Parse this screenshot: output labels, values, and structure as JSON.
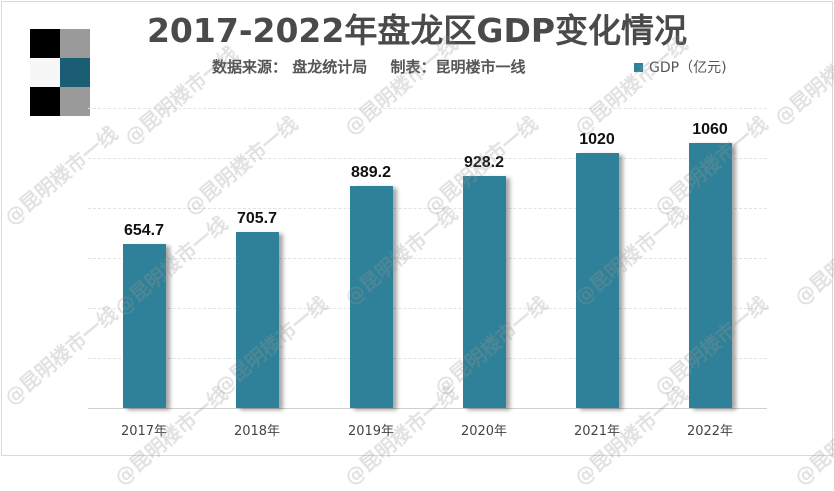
{
  "header": {
    "title": "2017-2022年盘龙区GDP变化情况",
    "source": "数据来源： 盘龙统计局",
    "maker": "制表：昆明楼市一线"
  },
  "legend": {
    "label": "GDP（亿元)",
    "color": "#2e8198"
  },
  "watermark": "@昆明楼市一线",
  "colors": {
    "bar": "#2e8198",
    "logo_dark": "#000000",
    "logo_gray": "#9a9a9a",
    "logo_teal": "#1b5e73"
  },
  "chart_data": {
    "type": "bar",
    "title": "2017-2022年盘龙区GDP变化情况",
    "subtitle": "数据来源： 盘龙统计局 制表：昆明楼市一线",
    "categories": [
      "2017年",
      "2018年",
      "2019年",
      "2020年",
      "2021年",
      "2022年"
    ],
    "series": [
      {
        "name": "GDP（亿元)",
        "values": [
          654.7,
          705.7,
          889.2,
          928.2,
          1020,
          1060
        ]
      }
    ],
    "labels": [
      "654.7",
      "705.7",
      "889.2",
      "928.2",
      "1020",
      "1060"
    ],
    "xlabel": "",
    "ylabel": "",
    "ylim": [
      0,
      1200
    ],
    "grid": true,
    "legend_position": "top-right"
  }
}
